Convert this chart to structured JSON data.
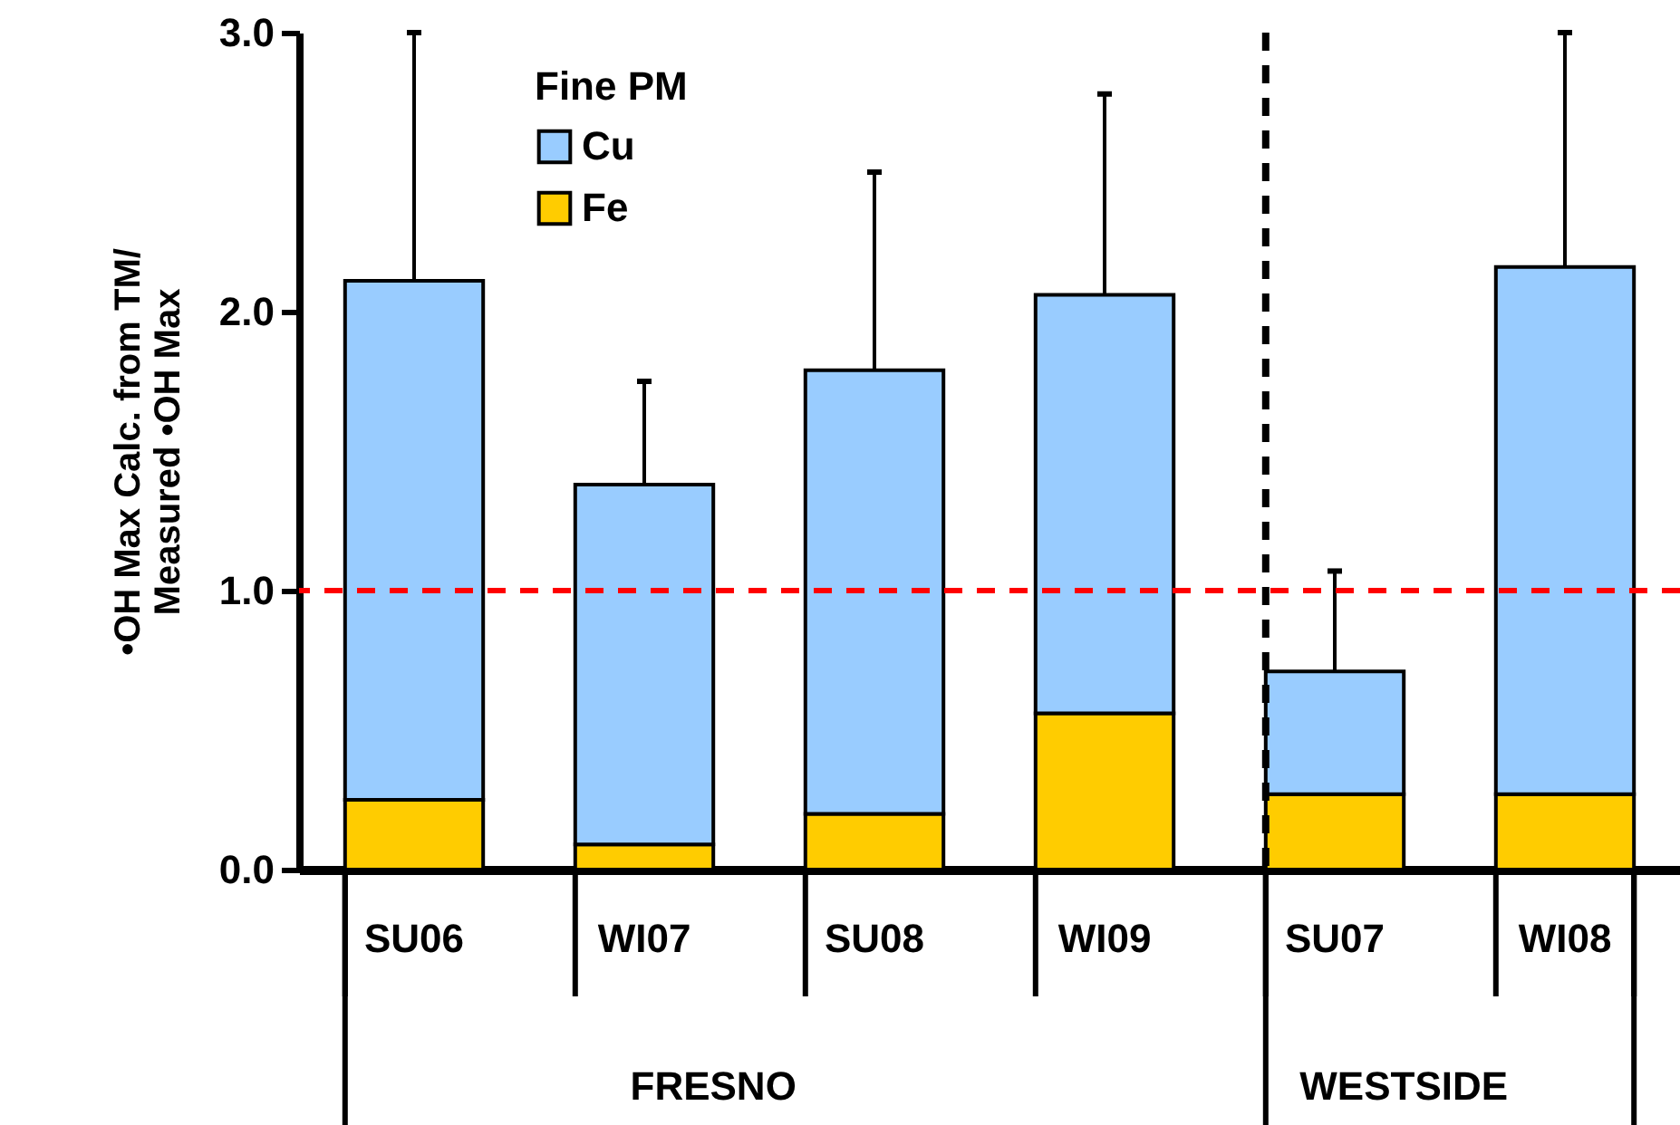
{
  "chart_data": {
    "type": "bar",
    "stacked": true,
    "ylabel": "•OH Max Calc. from TM/\nMeasured •OH Max",
    "legend_title": "Fine PM",
    "legend": "top left",
    "categories": [
      "SU06",
      "WI07",
      "SU08",
      "WI09",
      "SU07",
      "WI08"
    ],
    "series": [
      {
        "name": "Fe",
        "color": "#ffcc00",
        "values": [
          0.25,
          0.09,
          0.2,
          0.56,
          0.27,
          0.27
        ]
      },
      {
        "name": "Cu",
        "color": "#99ccff",
        "values": [
          1.86,
          1.29,
          1.59,
          1.5,
          0.44,
          1.89
        ],
        "errors": [
          [
            2.11,
            3.0
          ],
          [
            1.38,
            1.75
          ],
          [
            1.79,
            2.5
          ],
          [
            2.06,
            2.78
          ],
          [
            0.71,
            1.07
          ],
          [
            2.16,
            3.0
          ]
        ]
      }
    ],
    "ylim": [
      0,
      3
    ],
    "yticks": [
      {
        "value": 0,
        "label": "0.0"
      },
      {
        "value": 1,
        "label": "1.0"
      },
      {
        "value": 2,
        "label": "2.0"
      },
      {
        "value": 3,
        "label": "3.0"
      }
    ],
    "ref_lines": [
      {
        "axis": "y",
        "value": 1,
        "color": "#ff0000",
        "line_style": "dashed"
      },
      {
        "axis": "x",
        "value": "SU07",
        "color": "#000000",
        "line_style": "dashed"
      }
    ],
    "annotations": [
      "FRESNO",
      "WESTSIDE"
    ]
  }
}
